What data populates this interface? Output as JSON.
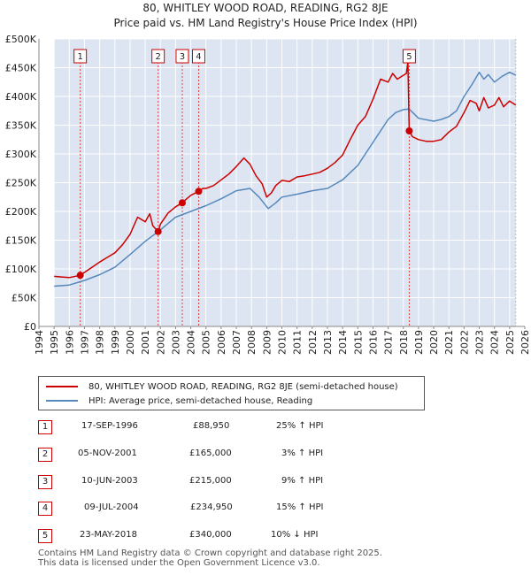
{
  "title_line1": "80, WHITLEY WOOD ROAD, READING, RG2 8JE",
  "title_line2": "Price paid vs. HM Land Registry's House Price Index (HPI)",
  "colors": {
    "property": "#cc0000",
    "hpi": "#5588bb",
    "band": "#dde5f2",
    "grid": "#dddddd"
  },
  "chart_data": {
    "type": "line",
    "title": "Price paid vs. HM Land Registry's House Price Index (HPI)",
    "xlabel": "",
    "ylabel": "",
    "xlim": [
      1994,
      2026
    ],
    "ylim": [
      0,
      500000
    ],
    "y_ticks": [
      0,
      50000,
      100000,
      150000,
      200000,
      250000,
      300000,
      350000,
      400000,
      450000,
      500000
    ],
    "y_tick_labels": [
      "£0",
      "£50K",
      "£100K",
      "£150K",
      "£200K",
      "£250K",
      "£300K",
      "£350K",
      "£400K",
      "£450K",
      "£500K"
    ],
    "x_ticks": [
      1994,
      1995,
      1996,
      1997,
      1998,
      1999,
      2000,
      2001,
      2002,
      2003,
      2004,
      2005,
      2006,
      2007,
      2008,
      2009,
      2010,
      2011,
      2012,
      2013,
      2014,
      2015,
      2016,
      2017,
      2018,
      2019,
      2020,
      2021,
      2022,
      2023,
      2024,
      2025,
      2026
    ],
    "x_tick_labels": [
      "1994",
      "1995",
      "1996",
      "1997",
      "1998",
      "1999",
      "2000",
      "2001",
      "2002",
      "2003",
      "2004",
      "2005",
      "2006",
      "2007",
      "2008",
      "2009",
      "2010",
      "2011",
      "2012",
      "2013",
      "2014",
      "2015",
      "2016",
      "2017",
      "2018",
      "2019",
      "2020",
      "2021",
      "2022",
      "2023",
      "2024",
      "2025",
      "2026"
    ],
    "data_range": [
      1995.0,
      2025.4
    ],
    "grid": true,
    "legend_position": "below",
    "series": [
      {
        "name": "80, WHITLEY WOOD ROAD, READING, RG2 8JE (semi-detached house)",
        "color": "#cc0000",
        "x": [
          1995.0,
          1995.5,
          1996.0,
          1996.72,
          1997.0,
          1997.5,
          1998.0,
          1998.5,
          1999.0,
          1999.5,
          2000.0,
          2000.5,
          2001.0,
          2001.3,
          2001.5,
          2001.85,
          2002.0,
          2002.5,
          2003.0,
          2003.44,
          2003.6,
          2004.0,
          2004.52,
          2004.8,
          2005.0,
          2005.5,
          2006.0,
          2006.5,
          2007.0,
          2007.5,
          2007.9,
          2008.3,
          2008.7,
          2009.0,
          2009.3,
          2009.6,
          2010.0,
          2010.5,
          2011.0,
          2011.5,
          2012.0,
          2012.5,
          2013.0,
          2013.5,
          2014.0,
          2014.5,
          2015.0,
          2015.5,
          2016.0,
          2016.5,
          2017.0,
          2017.3,
          2017.6,
          2017.9,
          2018.2,
          2018.3,
          2018.39,
          2018.6,
          2019.0,
          2019.5,
          2020.0,
          2020.5,
          2021.0,
          2021.5,
          2022.0,
          2022.4,
          2022.8,
          2023.0,
          2023.3,
          2023.6,
          2024.0,
          2024.3,
          2024.6,
          2025.0,
          2025.4
        ],
        "y": [
          87000,
          86000,
          85000,
          88950,
          94000,
          103000,
          112000,
          120000,
          128000,
          142000,
          160000,
          190000,
          182000,
          196000,
          175000,
          165000,
          178000,
          197000,
          208000,
          215000,
          219000,
          228000,
          234950,
          240000,
          240000,
          245000,
          255000,
          265000,
          278000,
          293000,
          282000,
          262000,
          248000,
          225000,
          232000,
          245000,
          254000,
          252000,
          260000,
          262000,
          265000,
          268000,
          275000,
          285000,
          298000,
          325000,
          350000,
          365000,
          395000,
          430000,
          425000,
          440000,
          430000,
          435000,
          440000,
          460000,
          340000,
          330000,
          325000,
          322000,
          322000,
          325000,
          338000,
          348000,
          372000,
          393000,
          388000,
          375000,
          398000,
          380000,
          385000,
          398000,
          382000,
          392000,
          385000
        ]
      },
      {
        "name": "HPI: Average price, semi-detached house, Reading",
        "color": "#5588bb",
        "x": [
          1995.0,
          1996.0,
          1997.0,
          1998.0,
          1999.0,
          2000.0,
          2001.0,
          2002.0,
          2003.0,
          2004.0,
          2005.0,
          2006.0,
          2007.0,
          2007.9,
          2008.5,
          2009.1,
          2009.6,
          2010.0,
          2011.0,
          2012.0,
          2013.0,
          2014.0,
          2015.0,
          2016.0,
          2016.5,
          2017.0,
          2017.5,
          2018.0,
          2018.39,
          2019.0,
          2020.0,
          2020.5,
          2021.0,
          2021.5,
          2022.0,
          2022.5,
          2023.0,
          2023.3,
          2023.6,
          2024.0,
          2024.5,
          2025.0,
          2025.4
        ],
        "y": [
          70000,
          72000,
          80000,
          90000,
          103000,
          125000,
          148000,
          168000,
          190000,
          200000,
          210000,
          222000,
          236000,
          240000,
          225000,
          205000,
          215000,
          225000,
          230000,
          236000,
          240000,
          255000,
          280000,
          320000,
          340000,
          360000,
          372000,
          377000,
          378000,
          362000,
          357000,
          360000,
          365000,
          375000,
          400000,
          420000,
          442000,
          430000,
          438000,
          425000,
          435000,
          442000,
          437000
        ]
      }
    ],
    "sale_markers": [
      {
        "label": "1",
        "x": 1996.72,
        "y": 88950
      },
      {
        "label": "2",
        "x": 2001.85,
        "y": 165000
      },
      {
        "label": "3",
        "x": 2003.44,
        "y": 215000
      },
      {
        "label": "4",
        "x": 2004.52,
        "y": 234950
      },
      {
        "label": "5",
        "x": 2018.39,
        "y": 340000
      }
    ]
  },
  "legend": {
    "property": "80, WHITLEY WOOD ROAD, READING, RG2 8JE (semi-detached house)",
    "hpi": "HPI: Average price, semi-detached house, Reading"
  },
  "sales": [
    {
      "num": "1",
      "date": "17-SEP-1996",
      "price": "£88,950",
      "hpi": "25% ↑ HPI"
    },
    {
      "num": "2",
      "date": "05-NOV-2001",
      "price": "£165,000",
      "hpi": "3% ↑ HPI"
    },
    {
      "num": "3",
      "date": "10-JUN-2003",
      "price": "£215,000",
      "hpi": "9% ↑ HPI"
    },
    {
      "num": "4",
      "date": "09-JUL-2004",
      "price": "£234,950",
      "hpi": "15% ↑ HPI"
    },
    {
      "num": "5",
      "date": "23-MAY-2018",
      "price": "£340,000",
      "hpi": "10% ↓ HPI"
    }
  ],
  "footer_line1": "Contains HM Land Registry data © Crown copyright and database right 2025.",
  "footer_line2": "This data is licensed under the Open Government Licence v3.0."
}
